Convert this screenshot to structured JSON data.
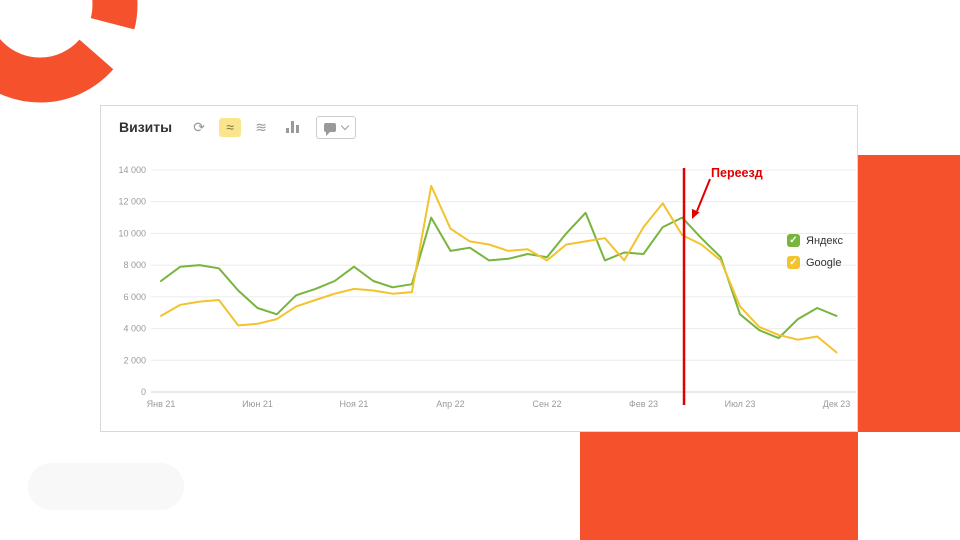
{
  "colors": {
    "accent_orange": "#F4512C",
    "annotation_red": "#E00000",
    "yandex_green": "#77B53C",
    "google_yellow": "#F2C32E",
    "grid_gray": "#ebebeb",
    "axis_text_gray": "#9a9a9a"
  },
  "panel": {
    "title": "Визиты"
  },
  "toolbar": {
    "refresh_glyph": "⟳",
    "line_chart_glyph": "≈",
    "area_chart_glyph": "≋",
    "selected_tool": "line-chart"
  },
  "legend": {
    "check_glyph": "✓",
    "items": [
      {
        "label": "Яндекс",
        "color": "#77B53C"
      },
      {
        "label": "Google",
        "color": "#F2C32E"
      }
    ]
  },
  "chart_data": {
    "type": "line",
    "title": "Визиты",
    "x_labels": [
      "Янв 21",
      "Июн 21",
      "Ноя 21",
      "Апр 22",
      "Сен 22",
      "Фев 23",
      "Июл 23",
      "Дек 23"
    ],
    "x_label_positions": [
      0,
      5,
      10,
      15,
      20,
      25,
      30,
      35
    ],
    "months": 36,
    "ylim": [
      0,
      14000
    ],
    "ytick_step": 2000,
    "yticks": [
      "0",
      "2 000",
      "4 000",
      "6 000",
      "8 000",
      "10 000",
      "12 000",
      "14 000"
    ],
    "grid": true,
    "legend_position": "right-inside",
    "series": [
      {
        "name": "Яндекс",
        "color": "#77B53C",
        "values": [
          7000,
          7900,
          8000,
          7800,
          6400,
          5300,
          4900,
          6100,
          6500,
          7000,
          7900,
          7000,
          6600,
          6800,
          11000,
          8900,
          9100,
          8300,
          8400,
          8700,
          8500,
          10000,
          11300,
          8300,
          8800,
          8700,
          10400,
          11000,
          9700,
          8500,
          4900,
          3900,
          3400,
          4600,
          5300,
          4800
        ]
      },
      {
        "name": "Google",
        "color": "#F2C32E",
        "values": [
          4800,
          5500,
          5700,
          5800,
          4200,
          4300,
          4600,
          5400,
          5800,
          6200,
          6500,
          6400,
          6200,
          6300,
          13000,
          10300,
          9500,
          9300,
          8900,
          9000,
          8300,
          9300,
          9500,
          9700,
          8300,
          10400,
          11900,
          9900,
          9300,
          8300,
          5400,
          4100,
          3600,
          3300,
          3500,
          2500
        ]
      }
    ],
    "annotation": {
      "label": "Переезд",
      "x_index": 27.1,
      "color": "#E00000"
    }
  }
}
